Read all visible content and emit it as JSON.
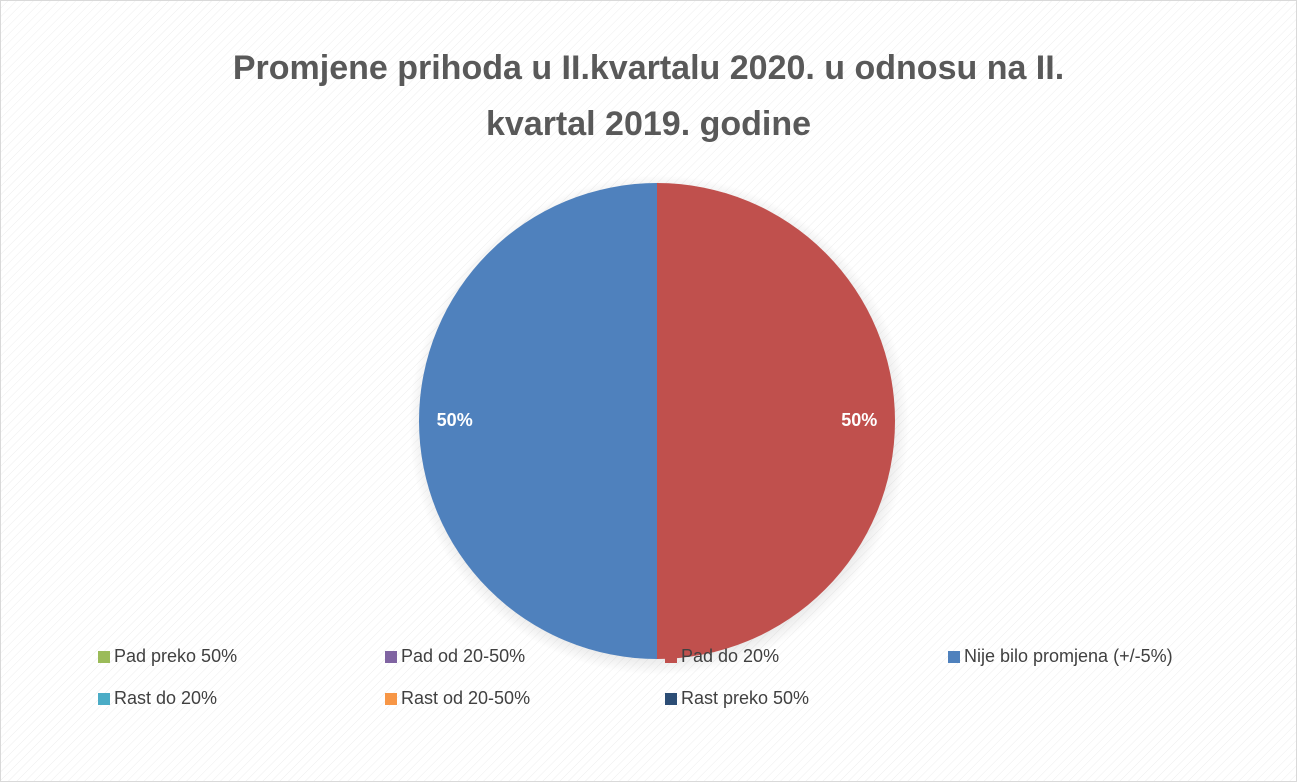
{
  "chart_data": {
    "type": "pie",
    "title": "Promjene prihoda u II.kvartalu 2020. u odnosu na II. kvartal 2019. godine",
    "categories": [
      "Pad preko 50%",
      "Pad od 20-50%",
      "Pad do 20%",
      "Nije bilo promjena (+/-5%)",
      "Rast do 20%",
      "Rast od 20-50%",
      "Rast preko 50%"
    ],
    "values": [
      0,
      0,
      50,
      50,
      0,
      0,
      0
    ],
    "value_labels": [
      null,
      null,
      "50%",
      "50%",
      null,
      null,
      null
    ],
    "colors": [
      "#9bbb59",
      "#8064a2",
      "#c0504d",
      "#4f81bd",
      "#4bacc6",
      "#f79646",
      "#2c4d75"
    ],
    "legend": "bottom"
  }
}
